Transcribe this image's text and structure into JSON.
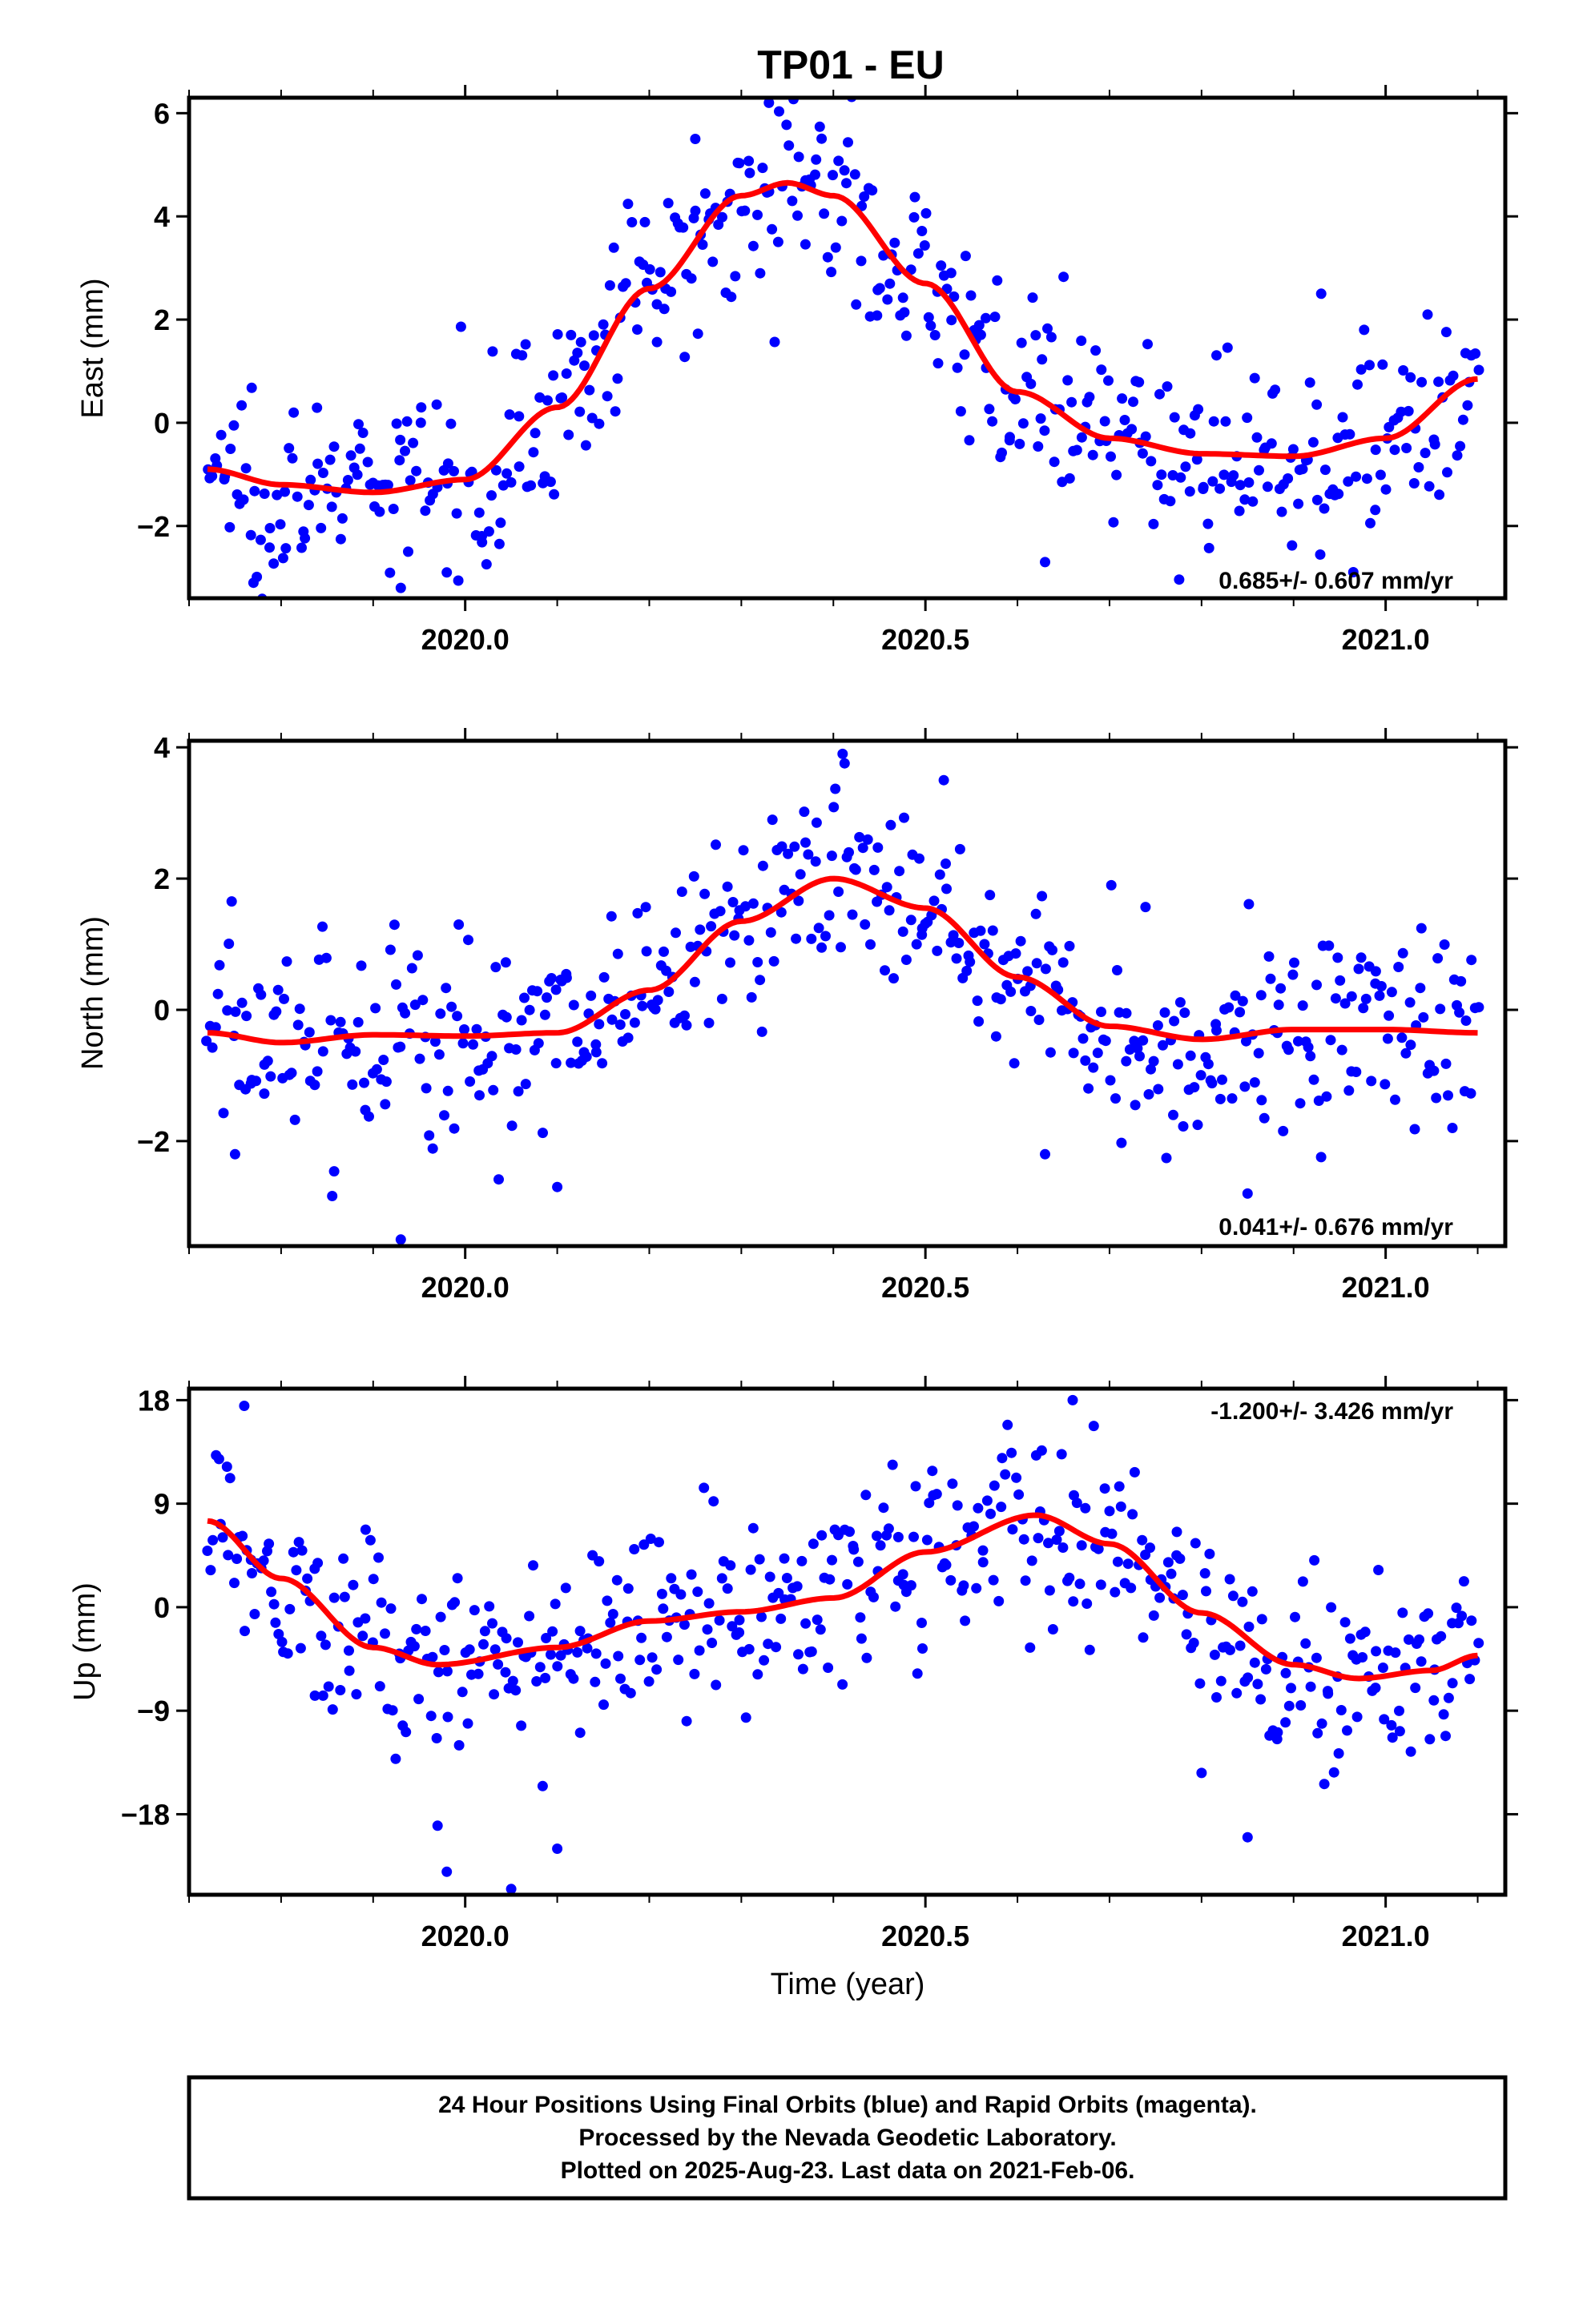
{
  "title": "TP01 - EU",
  "colors": {
    "points": "#0000ff",
    "fit": "#ff0000",
    "frame": "#000000"
  },
  "footer": {
    "line1": "24 Hour Positions Using Final Orbits (blue) and Rapid Orbits (magenta).",
    "line2": "Processed by the Nevada Geodetic Laboratory.",
    "line3": "Plotted on 2025-Aug-23. Last data on 2021-Feb-06."
  },
  "chart_data": [
    {
      "type": "scatter",
      "ylabel": "East (mm)",
      "xlabel": "",
      "rate_label": "0.685+/- 0.607 mm/yr",
      "rate_position": "bottom-right",
      "xlim": [
        2019.7,
        2021.13
      ],
      "ylim": [
        -3.4,
        6.3
      ],
      "x_ticks": [
        2020.0,
        2020.5,
        2021.0
      ],
      "x_tick_labels": [
        "2020.0",
        "2020.5",
        "2021.0"
      ],
      "y_ticks": [
        -2,
        0,
        2,
        4,
        6
      ],
      "y_tick_labels": [
        "−2",
        "0",
        "2",
        "4",
        "6"
      ],
      "series": [
        {
          "kind": "points",
          "x_start": 2019.72,
          "x_end": 2021.1,
          "count": 480,
          "scatter": 0.9,
          "outliers": [
            [
              2019.77,
              -3.1
            ],
            [
              2019.93,
              -3.2
            ],
            [
              2019.98,
              -2.9
            ],
            [
              2020.33,
              6.2
            ],
            [
              2020.63,
              -2.7
            ],
            [
              2020.25,
              5.5
            ],
            [
              2020.93,
              2.5
            ]
          ]
        },
        {
          "kind": "fit",
          "x": [
            2019.72,
            2019.8,
            2019.9,
            2020.0,
            2020.1,
            2020.2,
            2020.3,
            2020.35,
            2020.4,
            2020.5,
            2020.6,
            2020.7,
            2020.8,
            2020.9,
            2021.0,
            2021.1
          ],
          "y": [
            -0.9,
            -1.2,
            -1.35,
            -1.1,
            0.3,
            2.6,
            4.4,
            4.65,
            4.4,
            2.7,
            0.6,
            -0.3,
            -0.6,
            -0.65,
            -0.3,
            0.85
          ]
        }
      ]
    },
    {
      "type": "scatter",
      "ylabel": "North (mm)",
      "xlabel": "",
      "rate_label": "0.041+/- 0.676 mm/yr",
      "rate_position": "bottom-right",
      "xlim": [
        2019.7,
        2021.13
      ],
      "ylim": [
        -3.6,
        4.1
      ],
      "x_ticks": [
        2020.0,
        2020.5,
        2021.0
      ],
      "x_tick_labels": [
        "2020.0",
        "2020.5",
        "2021.0"
      ],
      "y_ticks": [
        -2,
        0,
        2,
        4
      ],
      "y_tick_labels": [
        "−2",
        "0",
        "2",
        "4"
      ],
      "series": [
        {
          "kind": "points",
          "x_start": 2019.72,
          "x_end": 2021.1,
          "count": 480,
          "scatter": 0.8,
          "outliers": [
            [
              2019.93,
              -3.5
            ],
            [
              2020.1,
              -2.7
            ],
            [
              2020.41,
              3.9
            ],
            [
              2020.85,
              -2.8
            ],
            [
              2020.63,
              -2.2
            ],
            [
              2019.75,
              -2.2
            ],
            [
              2020.52,
              3.5
            ]
          ]
        },
        {
          "kind": "fit",
          "x": [
            2019.72,
            2019.8,
            2019.9,
            2020.0,
            2020.1,
            2020.2,
            2020.3,
            2020.4,
            2020.5,
            2020.6,
            2020.7,
            2020.8,
            2020.9,
            2021.0,
            2021.1
          ],
          "y": [
            -0.35,
            -0.5,
            -0.38,
            -0.4,
            -0.35,
            0.3,
            1.35,
            2.0,
            1.55,
            0.5,
            -0.25,
            -0.45,
            -0.3,
            -0.3,
            -0.35
          ]
        }
      ]
    },
    {
      "type": "scatter",
      "ylabel": "Up (mm)",
      "xlabel": "Time (year)",
      "rate_label": "-1.200+/- 3.426 mm/yr",
      "rate_position": "top-right",
      "xlim": [
        2019.7,
        2021.13
      ],
      "ylim": [
        -25,
        19
      ],
      "x_ticks": [
        2020.0,
        2020.5,
        2021.0
      ],
      "x_tick_labels": [
        "2020.0",
        "2020.5",
        "2021.0"
      ],
      "y_ticks": [
        -18,
        -9,
        0,
        9,
        18
      ],
      "y_tick_labels": [
        "−18",
        "−9",
        "0",
        "9",
        "18"
      ],
      "series": [
        {
          "kind": "points",
          "x_start": 2019.72,
          "x_end": 2021.1,
          "count": 480,
          "scatter": 4.2,
          "outliers": [
            [
              2019.76,
              17.5
            ],
            [
              2019.98,
              -23
            ],
            [
              2020.05,
              -24.5
            ],
            [
              2020.1,
              -21
            ],
            [
              2020.66,
              18
            ],
            [
              2020.85,
              -20
            ],
            [
              2019.97,
              -19
            ]
          ]
        },
        {
          "kind": "fit",
          "x": [
            2019.72,
            2019.8,
            2019.9,
            2019.97,
            2020.1,
            2020.2,
            2020.3,
            2020.4,
            2020.5,
            2020.62,
            2020.7,
            2020.8,
            2020.9,
            2020.97,
            2021.05,
            2021.1
          ],
          "y": [
            7.5,
            2.5,
            -3.5,
            -5.0,
            -3.5,
            -1.2,
            -0.4,
            0.8,
            4.8,
            8.0,
            5.5,
            -0.5,
            -5.0,
            -6.2,
            -5.5,
            -4.2
          ]
        }
      ]
    }
  ]
}
